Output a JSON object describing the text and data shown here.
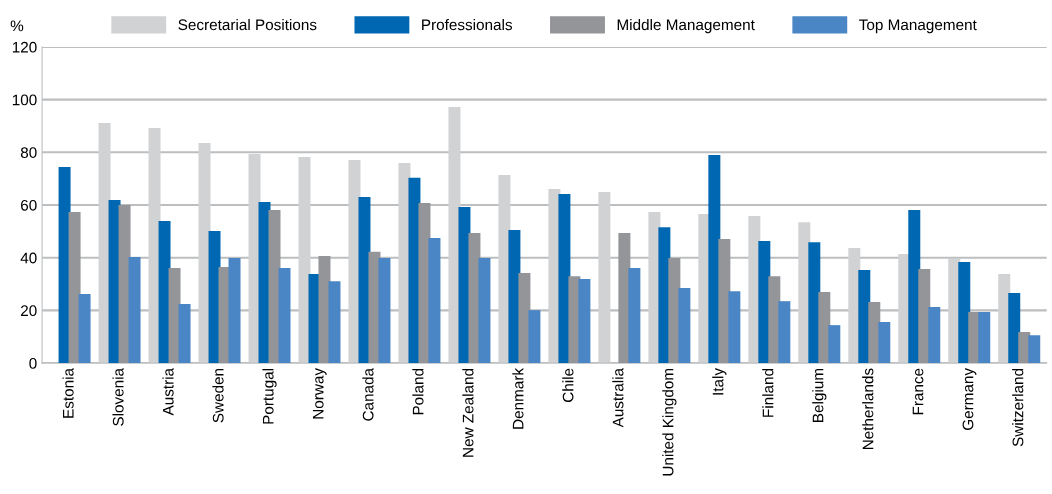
{
  "chart_data": {
    "type": "bar",
    "ylabel": "%",
    "categories": [
      "Estonia",
      "Slovenia",
      "Austria",
      "Sweden",
      "Portugal",
      "Norway",
      "Canada",
      "Poland",
      "New Zealand",
      "Denmark",
      "Chile",
      "Australia",
      "United Kingdom",
      "Italy",
      "Finland",
      "Belgium",
      "Netherlands",
      "France",
      "Germany",
      "Switzerland"
    ],
    "series": [
      {
        "name": "Secretarial Positions",
        "color": "#d1d2d4",
        "values": [
          null,
          91.1,
          89.2,
          83.5,
          79.4,
          78.2,
          77.1,
          75.9,
          97.2,
          71.4,
          66.1,
          64.9,
          57.3,
          56.6,
          55.8,
          53.5,
          43.7,
          41.4,
          39.5,
          33.8
        ]
      },
      {
        "name": "Professionals",
        "color": "#0068b3",
        "values": [
          74.4,
          61.9,
          53.9,
          50.1,
          61.1,
          33.8,
          63.0,
          70.3,
          59.2,
          50.5,
          64.2,
          null,
          51.6,
          79.0,
          46.3,
          45.9,
          35.3,
          58.1,
          38.4,
          26.6
        ]
      },
      {
        "name": "Middle Management",
        "color": "#939598",
        "values": [
          57.3,
          60.0,
          36.1,
          36.5,
          58.1,
          40.6,
          42.3,
          60.8,
          49.4,
          34.2,
          33.0,
          49.4,
          39.9,
          47.1,
          33.0,
          27.0,
          23.2,
          35.7,
          19.4,
          11.8
        ]
      },
      {
        "name": "Top Management",
        "color": "#4a86c5",
        "values": [
          26.2,
          40.3,
          22.4,
          39.9,
          36.1,
          31.1,
          39.9,
          47.5,
          39.9,
          20.1,
          31.9,
          36.1,
          28.5,
          27.3,
          23.5,
          14.4,
          15.6,
          21.3,
          19.4,
          10.6
        ]
      }
    ],
    "ylim": [
      0,
      120
    ],
    "yticks": [
      0,
      20,
      40,
      60,
      80,
      100,
      120
    ],
    "grid": "y",
    "legend": "top"
  }
}
